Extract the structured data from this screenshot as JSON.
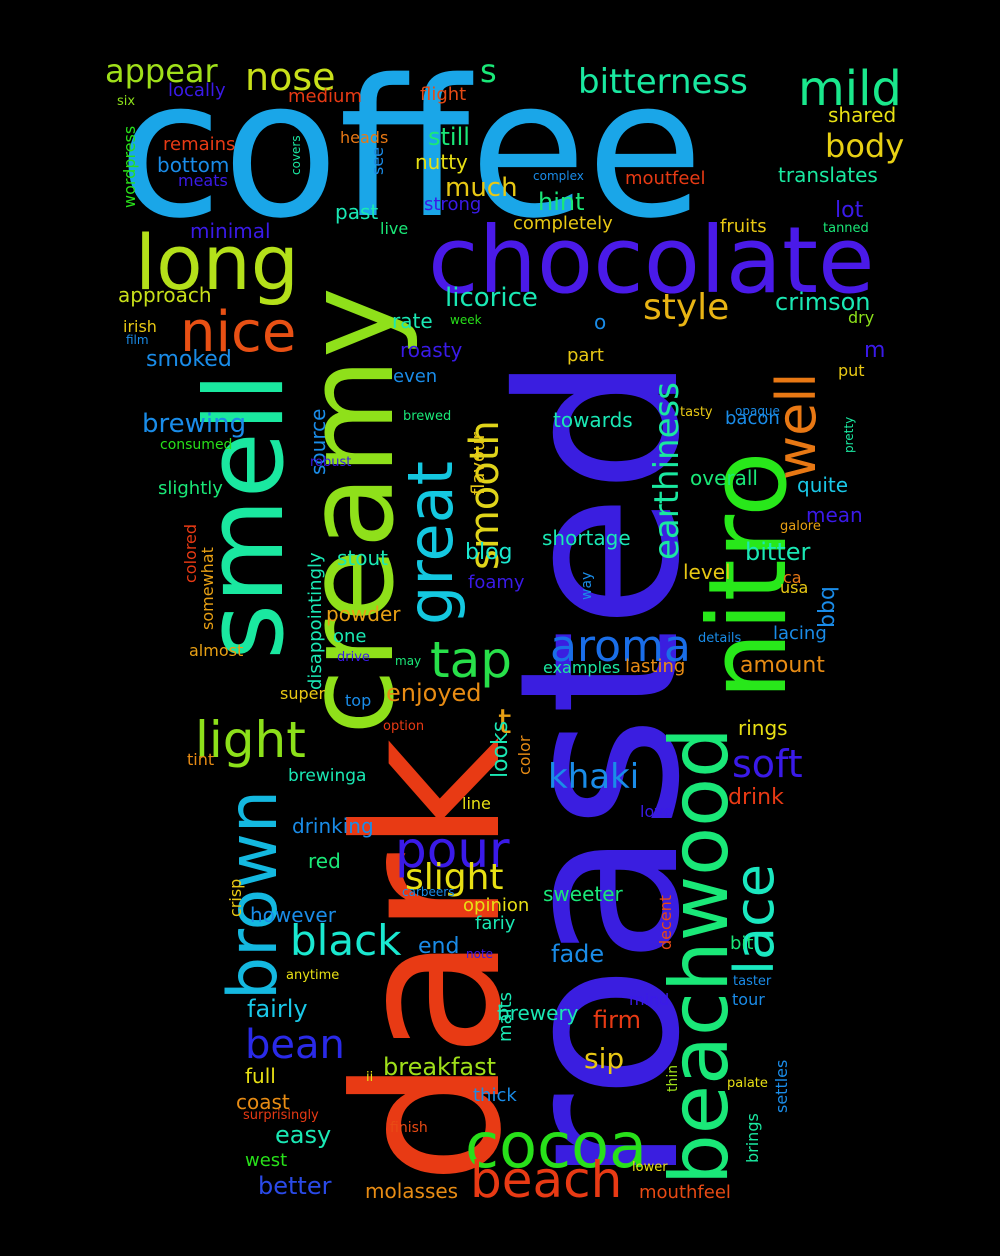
{
  "words": [
    {
      "text": "coffee",
      "color": "#1aa6e8"
    },
    {
      "text": "roasted",
      "color": "#3a1ee0"
    },
    {
      "text": "dark",
      "color": "#e83a14"
    },
    {
      "text": "creamy",
      "color": "#8fe01a"
    },
    {
      "text": "smell",
      "color": "#1ae8a0"
    },
    {
      "text": "nitro",
      "color": "#28e81a"
    },
    {
      "text": "chocolate",
      "color": "#4a1ae8"
    },
    {
      "text": "beachwood",
      "color": "#1ae878"
    },
    {
      "text": "long",
      "color": "#b4e01a"
    },
    {
      "text": "brown",
      "color": "#14b8e0"
    },
    {
      "text": "great",
      "color": "#14c8e0"
    },
    {
      "text": "nice",
      "color": "#e85014"
    },
    {
      "text": "well",
      "color": "#e87814"
    },
    {
      "text": "lace",
      "color": "#1ae8c0"
    },
    {
      "text": "cocoa",
      "color": "#28e01a"
    },
    {
      "text": "aroma",
      "color": "#1a6ee8"
    },
    {
      "text": "smooth",
      "color": "#e0d41a"
    },
    {
      "text": "tap",
      "color": "#28e04a"
    },
    {
      "text": "pour",
      "color": "#3a1ae8"
    },
    {
      "text": "beach",
      "color": "#e83a14"
    },
    {
      "text": "mild",
      "color": "#1ae88c"
    },
    {
      "text": "bitterness",
      "color": "#1ae8a0"
    },
    {
      "text": "nose",
      "color": "#c8e01a"
    },
    {
      "text": "appear",
      "color": "#a0e01a"
    },
    {
      "text": "light",
      "color": "#8ce01a"
    },
    {
      "text": "black",
      "color": "#1ae8d0"
    },
    {
      "text": "style",
      "color": "#e8b414"
    },
    {
      "text": "body",
      "color": "#e8d014"
    },
    {
      "text": "earthiness",
      "color": "#1ae8a0"
    },
    {
      "text": "bean",
      "color": "#2a2ae8"
    },
    {
      "text": "khaki",
      "color": "#1a8ce8"
    },
    {
      "text": "soft",
      "color": "#3a1ae8"
    },
    {
      "text": "slight",
      "color": "#e8e014"
    },
    {
      "text": "s",
      "color": "#1ae878"
    },
    {
      "text": "t",
      "color": "#e8a014"
    },
    {
      "text": "licorice",
      "color": "#1ae8b4"
    },
    {
      "text": "still",
      "color": "#1ae878"
    },
    {
      "text": "much",
      "color": "#e8c814"
    },
    {
      "text": "hint",
      "color": "#1ae878"
    },
    {
      "text": "crimson",
      "color": "#1ae8b4"
    },
    {
      "text": "translates",
      "color": "#1ae8a0"
    },
    {
      "text": "shared",
      "color": "#e8e014"
    },
    {
      "text": "lot",
      "color": "#3a1ae8"
    },
    {
      "text": "m",
      "color": "#3a1ae8"
    },
    {
      "text": "dry",
      "color": "#8ce01a"
    },
    {
      "text": "put",
      "color": "#e8c814"
    },
    {
      "text": "bacon",
      "color": "#1a8ce8"
    },
    {
      "text": "quite",
      "color": "#1ac8e8"
    },
    {
      "text": "mean",
      "color": "#3a1ae8"
    },
    {
      "text": "bitter",
      "color": "#1ae8b4"
    },
    {
      "text": "bbq",
      "color": "#1a8ce8"
    },
    {
      "text": "usa",
      "color": "#e8c814"
    },
    {
      "text": "ca",
      "color": "#e87814"
    },
    {
      "text": "amount",
      "color": "#e88c14"
    },
    {
      "text": "lacing",
      "color": "#1a8ce8"
    },
    {
      "text": "rings",
      "color": "#e8e014"
    },
    {
      "text": "drink",
      "color": "#e83a14"
    },
    {
      "text": "love",
      "color": "#3a1ae8"
    },
    {
      "text": "overall",
      "color": "#1ae878"
    },
    {
      "text": "towards",
      "color": "#1ae8b4"
    },
    {
      "text": "shortage",
      "color": "#1ae8b4"
    },
    {
      "text": "level",
      "color": "#e8c814"
    },
    {
      "text": "lasting",
      "color": "#e88c14"
    },
    {
      "text": "examples",
      "color": "#1ae8a0"
    },
    {
      "text": "fruits",
      "color": "#e8c814"
    },
    {
      "text": "completely",
      "color": "#e8c814"
    },
    {
      "text": "moutfeel",
      "color": "#e83a14"
    },
    {
      "text": "complex",
      "color": "#1a8ce8"
    },
    {
      "text": "flight",
      "color": "#e84a14"
    },
    {
      "text": "medium",
      "color": "#e83a14"
    },
    {
      "text": "locally",
      "color": "#3a1ae8"
    },
    {
      "text": "six",
      "color": "#8ce01a"
    },
    {
      "text": "wordpress",
      "color": "#28e01a"
    },
    {
      "text": "remains",
      "color": "#e83a14"
    },
    {
      "text": "meats",
      "color": "#3a1ae8"
    },
    {
      "text": "bottom",
      "color": "#1a8ce8"
    },
    {
      "text": "covers",
      "color": "#1ae8a0"
    },
    {
      "text": "see",
      "color": "#1a8ce8"
    },
    {
      "text": "heads",
      "color": "#e87814"
    },
    {
      "text": "nutty",
      "color": "#e8e014"
    },
    {
      "text": "strong",
      "color": "#3a1ae8"
    },
    {
      "text": "minimal",
      "color": "#3a1ae8"
    },
    {
      "text": "past",
      "color": "#1ae8b4"
    },
    {
      "text": "live",
      "color": "#1ae878"
    },
    {
      "text": "approach",
      "color": "#c8e01a"
    },
    {
      "text": "irish",
      "color": "#e8c814"
    },
    {
      "text": "film",
      "color": "#1a8ce8"
    },
    {
      "text": "smoked",
      "color": "#1a8ce8"
    },
    {
      "text": "rate",
      "color": "#1ae8b4"
    },
    {
      "text": "roasty",
      "color": "#3a1ae8"
    },
    {
      "text": "even",
      "color": "#1a8ce8"
    },
    {
      "text": "part",
      "color": "#e8c814"
    },
    {
      "text": "week",
      "color": "#28e01a"
    },
    {
      "text": "brewing",
      "color": "#1a8ce8"
    },
    {
      "text": "consumed",
      "color": "#28e01a"
    },
    {
      "text": "slightly",
      "color": "#1ae878"
    },
    {
      "text": "source",
      "color": "#1a8ce8"
    },
    {
      "text": "brewed",
      "color": "#1ae878"
    },
    {
      "text": "robust",
      "color": "#3a1ae8"
    },
    {
      "text": "flavour",
      "color": "#e8c814"
    },
    {
      "text": "tasty",
      "color": "#e8c814"
    },
    {
      "text": "opaque",
      "color": "#1a8ce8"
    },
    {
      "text": "pretty",
      "color": "#1ae8a0"
    },
    {
      "text": "galore",
      "color": "#e8a014"
    },
    {
      "text": "tanned",
      "color": "#1ae878"
    },
    {
      "text": "o",
      "color": "#1a8ce8"
    },
    {
      "text": "colored",
      "color": "#e83a14"
    },
    {
      "text": "somewhat",
      "color": "#e8a014"
    },
    {
      "text": "stout",
      "color": "#1ae8b4"
    },
    {
      "text": "blog",
      "color": "#1ae8d0"
    },
    {
      "text": "foamy",
      "color": "#3a1ae8"
    },
    {
      "text": "way",
      "color": "#1a8ce8"
    },
    {
      "text": "powder",
      "color": "#e8a014"
    },
    {
      "text": "disappointingly",
      "color": "#1ae8b4"
    },
    {
      "text": "one",
      "color": "#1ae8b4"
    },
    {
      "text": "drive",
      "color": "#3a1ae8"
    },
    {
      "text": "may",
      "color": "#1ae878"
    },
    {
      "text": "details",
      "color": "#1a8ce8"
    },
    {
      "text": "almost",
      "color": "#e8a014"
    },
    {
      "text": "super",
      "color": "#e8c814"
    },
    {
      "text": "top",
      "color": "#1a8ce8"
    },
    {
      "text": "enjoyed",
      "color": "#e88c14"
    },
    {
      "text": "option",
      "color": "#e83a14"
    },
    {
      "text": "tint",
      "color": "#e88c14"
    },
    {
      "text": "brewinga",
      "color": "#1ae8b4"
    },
    {
      "text": "looks",
      "color": "#1ae8b4"
    },
    {
      "text": "color",
      "color": "#e88c14"
    },
    {
      "text": "line",
      "color": "#e8e014"
    },
    {
      "text": "drinking",
      "color": "#1a8ce8"
    },
    {
      "text": "red",
      "color": "#1ae878"
    },
    {
      "text": "crisp",
      "color": "#e8c814"
    },
    {
      "text": "however",
      "color": "#1a8ce8"
    },
    {
      "text": "carbeers",
      "color": "#1a8ce8"
    },
    {
      "text": "opinion",
      "color": "#e8e014"
    },
    {
      "text": "fariy",
      "color": "#1ae8b4"
    },
    {
      "text": "sweeter",
      "color": "#1ae878"
    },
    {
      "text": "decent",
      "color": "#e84a14"
    },
    {
      "text": "end",
      "color": "#1a8ce8"
    },
    {
      "text": "fade",
      "color": "#1a8ce8"
    },
    {
      "text": "note",
      "color": "#3a1ae8"
    },
    {
      "text": "bit",
      "color": "#1ae878"
    },
    {
      "text": "taster",
      "color": "#1a8ce8"
    },
    {
      "text": "tour",
      "color": "#1a8ce8"
    },
    {
      "text": "anytime",
      "color": "#e8e014"
    },
    {
      "text": "fairly",
      "color": "#1ac8e8"
    },
    {
      "text": "malts",
      "color": "#1ae8b4"
    },
    {
      "text": "brewery",
      "color": "#1ae8b4"
    },
    {
      "text": "firm",
      "color": "#e83a14"
    },
    {
      "text": "mind",
      "color": "#3a1ae8"
    },
    {
      "text": "settles",
      "color": "#1a8ce8"
    },
    {
      "text": "thin",
      "color": "#a0e01a"
    },
    {
      "text": "palate",
      "color": "#e8e014"
    },
    {
      "text": "sip",
      "color": "#e8c814"
    },
    {
      "text": "full",
      "color": "#e8e014"
    },
    {
      "text": "ii",
      "color": "#e8e014"
    },
    {
      "text": "breakfast",
      "color": "#a0e01a"
    },
    {
      "text": "coast",
      "color": "#e88c14"
    },
    {
      "text": "thick",
      "color": "#1a8ce8"
    },
    {
      "text": "surprisingly",
      "color": "#e83a14"
    },
    {
      "text": "finish",
      "color": "#e84a14"
    },
    {
      "text": "easy",
      "color": "#1ae8b4"
    },
    {
      "text": "brings",
      "color": "#1ae8a0"
    },
    {
      "text": "lower",
      "color": "#e8e014"
    },
    {
      "text": "west",
      "color": "#28e01a"
    },
    {
      "text": "better",
      "color": "#2a4ae8"
    },
    {
      "text": "molasses",
      "color": "#e88c14"
    },
    {
      "text": "mouthfeel",
      "color": "#e84a14"
    }
  ]
}
